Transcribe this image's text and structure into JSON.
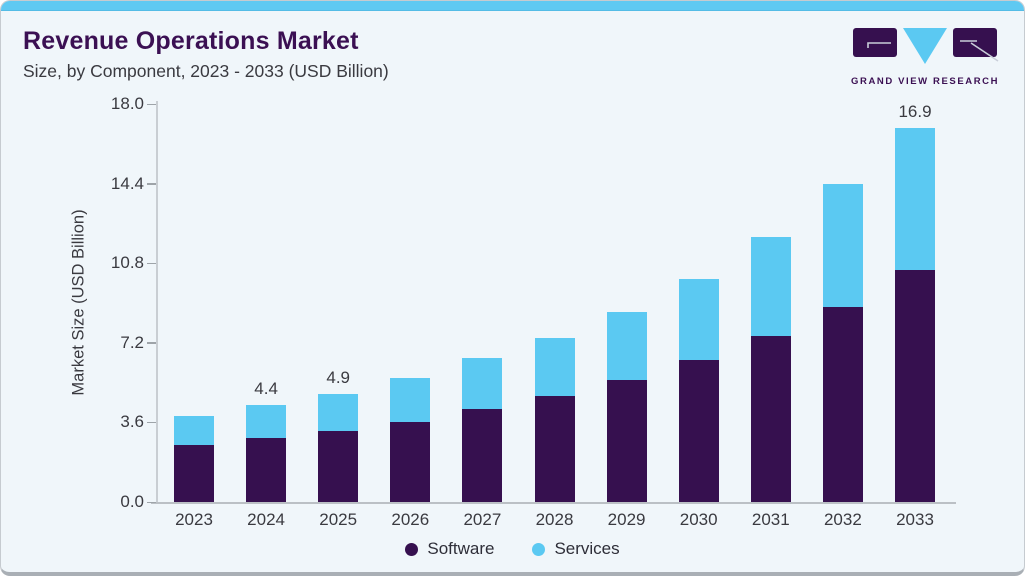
{
  "header": {
    "title": "Revenue Operations Market",
    "subtitle": "Size, by Component, 2023 - 2033 (USD Billion)"
  },
  "logo": {
    "text": "GRAND VIEW RESEARCH",
    "mark_purple": "#36104F",
    "mark_blue": "#5BC9F2"
  },
  "colors": {
    "card_background": "#F0F6FA",
    "top_strip": "#5FC9F2",
    "software": "#36104F",
    "services": "#5BC9F2",
    "title_text": "#3B1053",
    "axis_text": "#3A3A40"
  },
  "chart_data": {
    "type": "bar",
    "stacked": true,
    "title": "Revenue Operations Market Size, by Component, 2023 - 2033 (USD Billion)",
    "categories": [
      "2023",
      "2024",
      "2025",
      "2026",
      "2027",
      "2028",
      "2029",
      "2030",
      "2031",
      "2032",
      "2033"
    ],
    "series": [
      {
        "name": "Software",
        "color": "#36104F",
        "values": [
          2.6,
          2.9,
          3.2,
          3.6,
          4.2,
          4.8,
          5.5,
          6.4,
          7.5,
          8.8,
          10.5
        ]
      },
      {
        "name": "Services",
        "color": "#5BC9F2",
        "values": [
          1.3,
          1.5,
          1.7,
          2.0,
          2.3,
          2.6,
          3.1,
          3.7,
          4.5,
          5.6,
          6.4
        ]
      }
    ],
    "totals": [
      3.9,
      4.4,
      4.9,
      5.6,
      6.5,
      7.4,
      8.6,
      10.1,
      12.0,
      14.4,
      16.9
    ],
    "data_labels": [
      {
        "category": "2024",
        "label": "4.4"
      },
      {
        "category": "2025",
        "label": "4.9"
      },
      {
        "category": "2033",
        "label": "16.9"
      }
    ],
    "xlabel": "",
    "ylabel": "Market Size (USD Billion)",
    "ylim": [
      0,
      18
    ],
    "yticks": [
      "0.0",
      "3.6",
      "7.2",
      "10.8",
      "14.4",
      "18.0"
    ],
    "grid": false,
    "legend_position": "bottom-center"
  }
}
